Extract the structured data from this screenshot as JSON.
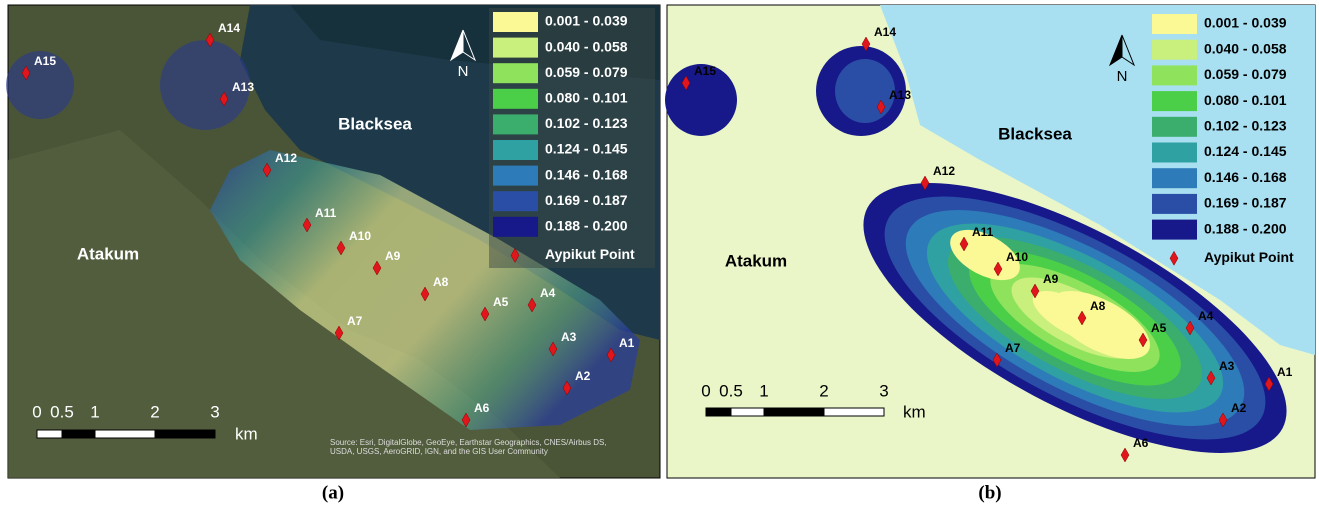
{
  "legend": {
    "classes": [
      "0.001 - 0.039",
      "0.040 - 0.058",
      "0.059 - 0.079",
      "0.080 - 0.101",
      "0.102 - 0.123",
      "0.124 - 0.145",
      "0.146 - 0.168",
      "0.169 - 0.187",
      "0.188 - 0.200"
    ],
    "point_label": "Aypikut Point"
  },
  "north": "N",
  "scale": {
    "ticks": [
      "0",
      "0.5",
      "1",
      "2",
      "3"
    ],
    "unit": "km"
  },
  "places": {
    "sea": "Blacksea",
    "town": "Atakum"
  },
  "points": [
    "A1",
    "A2",
    "A3",
    "A4",
    "A5",
    "A6",
    "A7",
    "A8",
    "A9",
    "A10",
    "A11",
    "A12",
    "A13",
    "A14",
    "A15"
  ],
  "panels": [
    {
      "caption": "(a)",
      "source": "Source: Esri, DigitalGlobe, GeoEye, Earthstar Geographics, CNES/Airbus DS, USDA, USGS, AeroGRID, IGN, and the GIS User Community"
    },
    {
      "caption": "(b)"
    }
  ]
}
